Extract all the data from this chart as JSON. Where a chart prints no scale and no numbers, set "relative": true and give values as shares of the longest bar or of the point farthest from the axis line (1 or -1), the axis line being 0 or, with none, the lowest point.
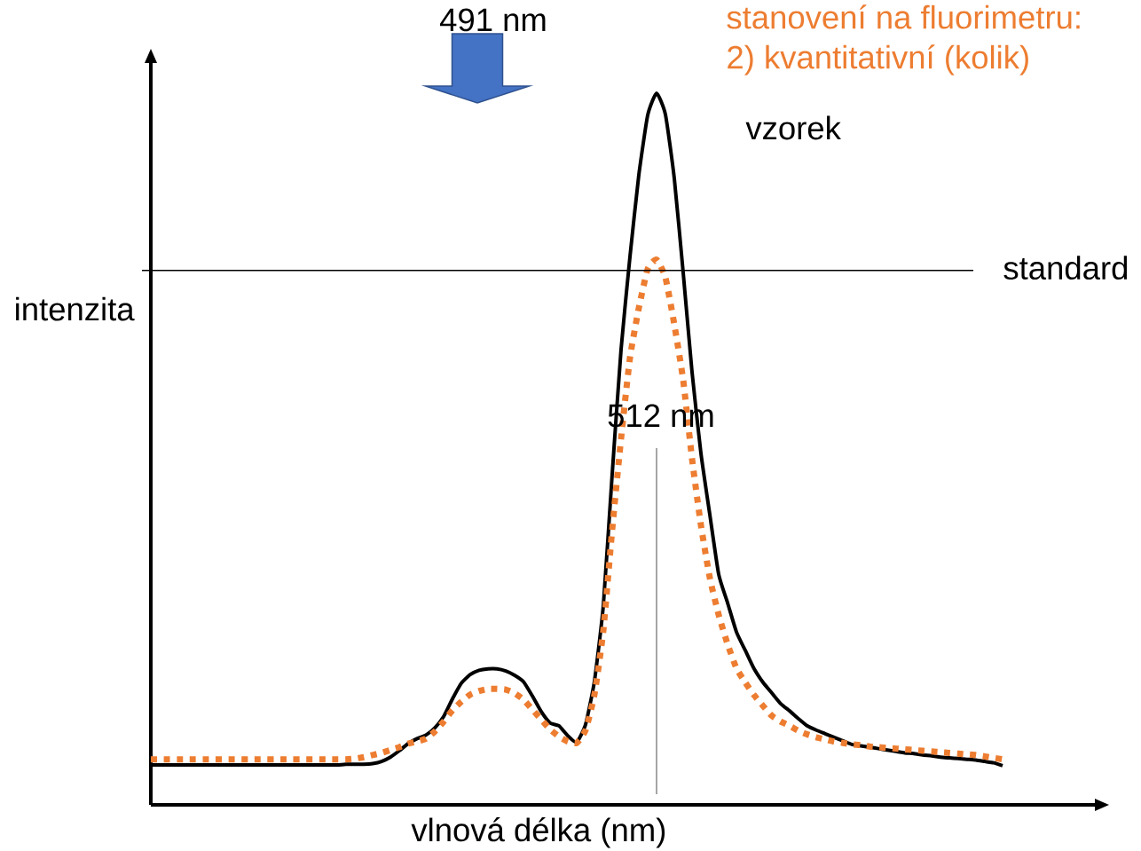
{
  "chart_data": {
    "type": "line",
    "title": "stanovení na fluorimetru:",
    "subtitle": "2) kvantitativní (kolik)",
    "xlabel": "vlnová délka (nm)",
    "ylabel": "intenzita",
    "relative": true,
    "categories": [
      null,
      null,
      null,
      null,
      null,
      null,
      null,
      null,
      null,
      null,
      null,
      null,
      null,
      null,
      null,
      null,
      null,
      null,
      null,
      null,
      null,
      null,
      null,
      null,
      null,
      null,
      null,
      null,
      null,
      null,
      null,
      null,
      null,
      null,
      null,
      null,
      null,
      null,
      null,
      null,
      null,
      null,
      null,
      null,
      null,
      null,
      null,
      null,
      null,
      null,
      null,
      null,
      null,
      null,
      null,
      null,
      null,
      null,
      null,
      null,
      null,
      null,
      null,
      null,
      null,
      null,
      null,
      null,
      null,
      null,
      null,
      null,
      null,
      null,
      null,
      null,
      null,
      null,
      null,
      null,
      null,
      null,
      null,
      null,
      null,
      null,
      null,
      null,
      null,
      null,
      null,
      null,
      null,
      null,
      null,
      null,
      null
    ],
    "series": [
      {
        "name": "vzorek",
        "color": "#000000",
        "line_style": "solid",
        "values": [
          0.056,
          0.056,
          0.056,
          0.056,
          0.056,
          0.056,
          0.056,
          0.056,
          0.056,
          0.056,
          0.056,
          0.056,
          0.056,
          0.056,
          0.056,
          0.056,
          0.056,
          0.056,
          0.056,
          0.056,
          0.056,
          0.056,
          0.057,
          0.057,
          0.057,
          0.058,
          0.061,
          0.067,
          0.076,
          0.086,
          0.093,
          0.098,
          0.108,
          0.124,
          0.149,
          0.171,
          0.183,
          0.189,
          0.191,
          0.191,
          0.188,
          0.182,
          0.173,
          0.153,
          0.131,
          0.115,
          0.111,
          0.097,
          0.088,
          0.113,
          0.174,
          0.28,
          0.465,
          0.64,
          0.77,
          0.885,
          0.969,
          1.0,
          0.97,
          0.88,
          0.748,
          0.608,
          0.494,
          0.408,
          0.324,
          0.284,
          0.243,
          0.217,
          0.191,
          0.172,
          0.157,
          0.142,
          0.132,
          0.121,
          0.111,
          0.105,
          0.1,
          0.095,
          0.09,
          0.085,
          0.083,
          0.081,
          0.079,
          0.077,
          0.075,
          0.073,
          0.072,
          0.07,
          0.069,
          0.067,
          0.066,
          0.065,
          0.064,
          0.063,
          0.061,
          0.059,
          0.055
        ]
      },
      {
        "color": "#ed7d31",
        "line_style": "dotted",
        "values": [
          0.064,
          0.064,
          0.064,
          0.064,
          0.064,
          0.064,
          0.064,
          0.064,
          0.064,
          0.064,
          0.064,
          0.064,
          0.064,
          0.064,
          0.064,
          0.064,
          0.064,
          0.064,
          0.064,
          0.064,
          0.064,
          0.064,
          0.064,
          0.065,
          0.067,
          0.07,
          0.073,
          0.077,
          0.081,
          0.086,
          0.089,
          0.093,
          0.103,
          0.117,
          0.133,
          0.145,
          0.155,
          0.16,
          0.163,
          0.163,
          0.162,
          0.157,
          0.148,
          0.134,
          0.12,
          0.106,
          0.096,
          0.089,
          0.087,
          0.105,
          0.155,
          0.245,
          0.387,
          0.515,
          0.628,
          0.698,
          0.753,
          0.766,
          0.741,
          0.675,
          0.597,
          0.486,
          0.393,
          0.319,
          0.267,
          0.226,
          0.192,
          0.172,
          0.154,
          0.139,
          0.125,
          0.117,
          0.111,
          0.104,
          0.099,
          0.095,
          0.092,
          0.089,
          0.087,
          0.085,
          0.084,
          0.082,
          0.081,
          0.08,
          0.079,
          0.078,
          0.077,
          0.076,
          0.075,
          0.074,
          0.073,
          0.072,
          0.071,
          0.07,
          0.068,
          0.066,
          0.064
        ]
      }
    ],
    "ref_lines": [
      {
        "axis": "y",
        "value": 0.751,
        "label": "standard",
        "color": "#000000"
      }
    ],
    "annotations": [
      "491 nm",
      "512 nm"
    ]
  }
}
